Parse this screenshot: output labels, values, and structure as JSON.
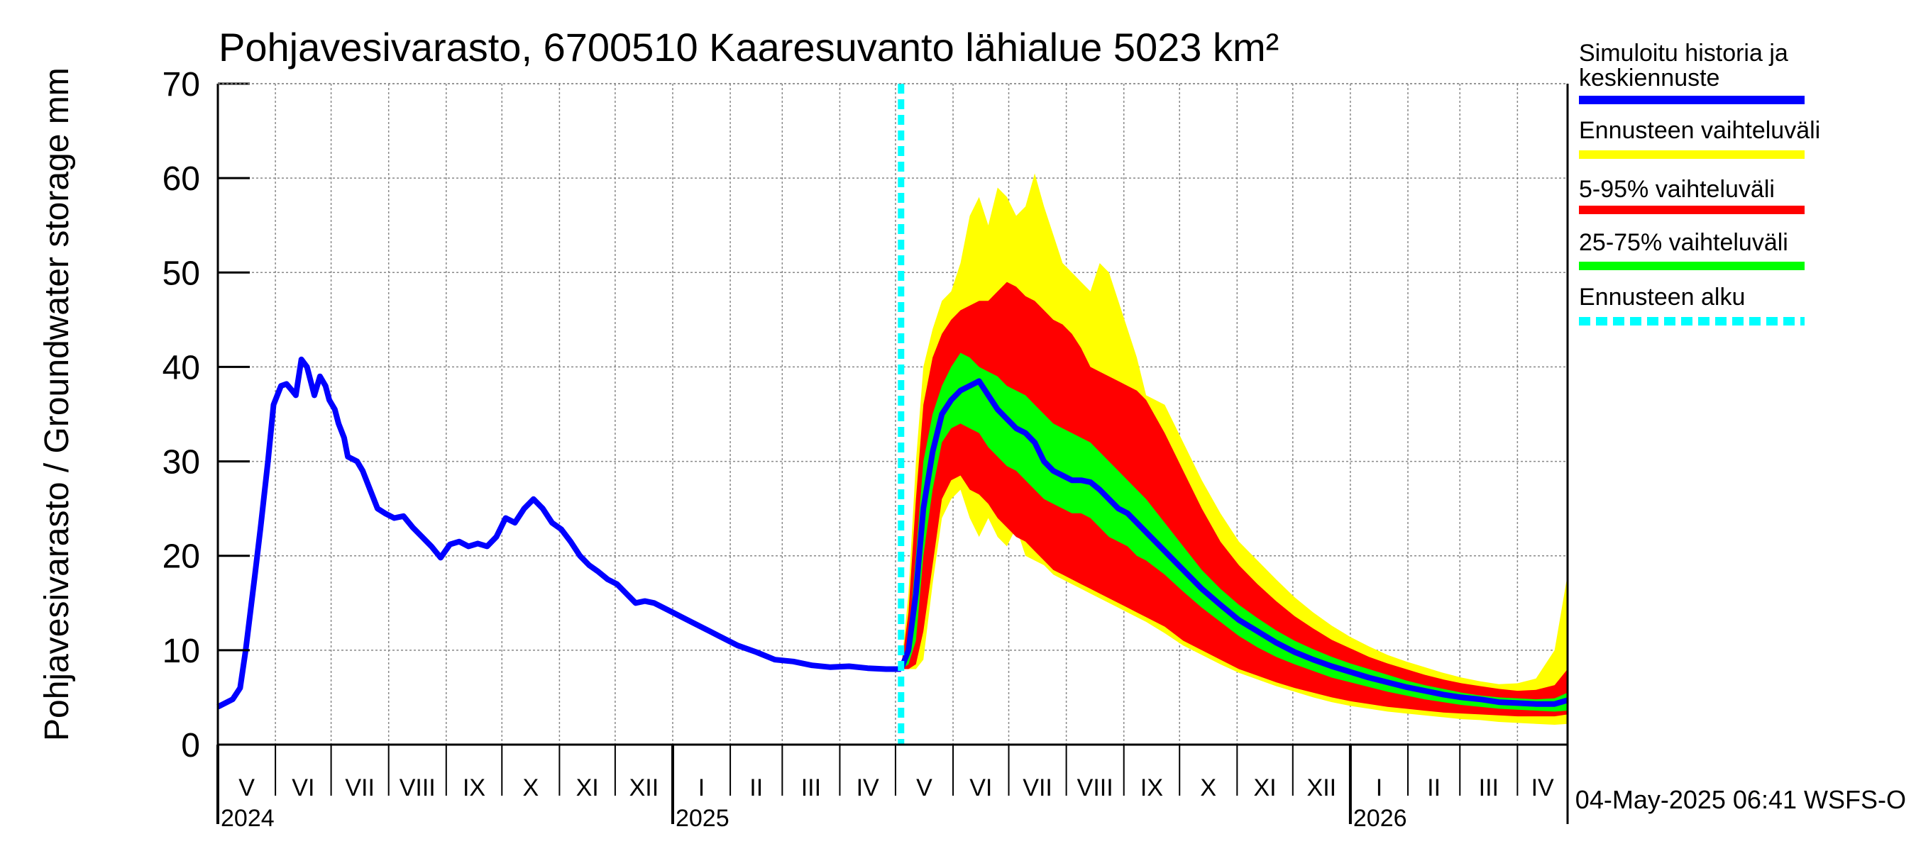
{
  "chart_data": {
    "type": "area",
    "title": "Pohjavesivarasto, 6700510 Kaaresuvanto lähialue 5023 km²",
    "ylabel": "Pohjavesivarasto / Groundwater storage   mm",
    "ylim": [
      0,
      70
    ],
    "yticks": [
      0,
      10,
      20,
      30,
      40,
      50,
      60,
      70
    ],
    "xlim_days": [
      0,
      727
    ],
    "month_labels": [
      {
        "label": "V",
        "day": 0
      },
      {
        "label": "VI",
        "day": 31
      },
      {
        "label": "VII",
        "day": 61
      },
      {
        "label": "VIII",
        "day": 92
      },
      {
        "label": "IX",
        "day": 123
      },
      {
        "label": "X",
        "day": 153
      },
      {
        "label": "XI",
        "day": 184
      },
      {
        "label": "XII",
        "day": 214
      },
      {
        "label": "I",
        "day": 245
      },
      {
        "label": "II",
        "day": 276
      },
      {
        "label": "III",
        "day": 304
      },
      {
        "label": "IV",
        "day": 335
      },
      {
        "label": "V",
        "day": 365
      },
      {
        "label": "VI",
        "day": 396
      },
      {
        "label": "VII",
        "day": 426
      },
      {
        "label": "VIII",
        "day": 457
      },
      {
        "label": "IX",
        "day": 488
      },
      {
        "label": "X",
        "day": 518
      },
      {
        "label": "XI",
        "day": 549
      },
      {
        "label": "XII",
        "day": 579
      },
      {
        "label": "I",
        "day": 610
      },
      {
        "label": "II",
        "day": 641
      },
      {
        "label": "III",
        "day": 669
      },
      {
        "label": "IV",
        "day": 700
      }
    ],
    "year_labels": [
      {
        "label": "2024",
        "day": 0
      },
      {
        "label": "2025",
        "day": 245
      },
      {
        "label": "2026",
        "day": 610
      }
    ],
    "forecast_start_day": 368,
    "history": {
      "name": "Simuloitu historia ja keskiennuste",
      "x": [
        0,
        8,
        12,
        15,
        20,
        23,
        27,
        30,
        34,
        37,
        40,
        42,
        45,
        48,
        50,
        52,
        55,
        58,
        60,
        63,
        65,
        68,
        70,
        75,
        78,
        82,
        86,
        90,
        95,
        100,
        105,
        110,
        115,
        120,
        125,
        130,
        135,
        140,
        145,
        150,
        155,
        160,
        165,
        170,
        175,
        180,
        185,
        190,
        195,
        200,
        205,
        210,
        215,
        220,
        225,
        230,
        235,
        240,
        245,
        250,
        255,
        260,
        265,
        270,
        280,
        290,
        300,
        310,
        320,
        330,
        340,
        350,
        360,
        368
      ],
      "y": [
        4.0,
        4.8,
        6.0,
        10.0,
        18.0,
        23.0,
        30.0,
        36.0,
        38.0,
        38.2,
        37.5,
        37.0,
        40.8,
        40.0,
        38.5,
        37.0,
        39.0,
        38.0,
        36.5,
        35.5,
        34.0,
        32.5,
        30.5,
        30.0,
        29.0,
        27.0,
        25.0,
        24.5,
        24.0,
        24.2,
        23.0,
        22.0,
        21.0,
        19.8,
        21.2,
        21.5,
        21.0,
        21.3,
        21.0,
        22.0,
        24.0,
        23.5,
        25.0,
        26.0,
        25.0,
        23.5,
        22.8,
        21.5,
        20.0,
        19.0,
        18.3,
        17.5,
        17.0,
        16.0,
        15.0,
        15.2,
        15.0,
        14.5,
        14.0,
        13.5,
        13.0,
        12.5,
        12.0,
        11.5,
        10.5,
        9.8,
        9.0,
        8.8,
        8.4,
        8.2,
        8.3,
        8.1,
        8.0,
        8.0
      ]
    },
    "forecast": {
      "x": [
        368,
        372,
        376,
        380,
        385,
        390,
        395,
        400,
        405,
        410,
        415,
        420,
        425,
        430,
        435,
        440,
        445,
        450,
        455,
        460,
        465,
        470,
        475,
        480,
        485,
        490,
        495,
        500,
        510,
        520,
        530,
        540,
        550,
        560,
        570,
        580,
        590,
        600,
        610,
        620,
        630,
        640,
        650,
        660,
        670,
        680,
        690,
        700,
        710,
        720,
        727
      ],
      "median": [
        8.0,
        10.0,
        16.0,
        25.0,
        31.0,
        35.0,
        36.5,
        37.5,
        38.0,
        38.5,
        37.0,
        35.5,
        34.5,
        33.5,
        33.0,
        32.0,
        30.0,
        29.0,
        28.5,
        28.0,
        28.0,
        27.8,
        27.0,
        26.0,
        25.0,
        24.5,
        23.5,
        22.5,
        20.5,
        18.5,
        16.5,
        14.8,
        13.2,
        12.0,
        10.8,
        9.8,
        9.0,
        8.3,
        7.7,
        7.1,
        6.6,
        6.1,
        5.7,
        5.3,
        5.0,
        4.8,
        4.5,
        4.4,
        4.3,
        4.3,
        4.7
      ],
      "p25": [
        8.0,
        8.5,
        11.0,
        20.0,
        27.0,
        32.0,
        33.5,
        34.0,
        33.5,
        33.0,
        31.5,
        30.5,
        29.5,
        29.0,
        28.0,
        27.0,
        26.0,
        25.5,
        25.0,
        24.5,
        24.5,
        24.0,
        23.0,
        22.0,
        21.5,
        21.0,
        20.0,
        19.5,
        18.0,
        16.2,
        14.5,
        13.0,
        11.5,
        10.3,
        9.3,
        8.5,
        7.8,
        7.1,
        6.6,
        6.1,
        5.6,
        5.2,
        4.8,
        4.5,
        4.2,
        4.0,
        3.8,
        3.7,
        3.6,
        3.5,
        3.6
      ],
      "p75": [
        8.0,
        11.0,
        20.0,
        30.0,
        35.0,
        38.0,
        40.0,
        41.5,
        41.0,
        40.0,
        39.5,
        39.0,
        38.0,
        37.5,
        37.0,
        36.0,
        35.0,
        34.0,
        33.5,
        33.0,
        32.5,
        32.0,
        31.0,
        30.0,
        29.0,
        28.0,
        27.0,
        26.0,
        23.5,
        21.0,
        18.5,
        16.5,
        14.8,
        13.4,
        12.1,
        11.0,
        10.1,
        9.3,
        8.6,
        8.0,
        7.4,
        6.8,
        6.3,
        5.9,
        5.5,
        5.2,
        5.0,
        4.9,
        4.8,
        4.9,
        5.5
      ],
      "p5": [
        8.0,
        8.0,
        8.5,
        12.0,
        19.0,
        26.0,
        28.0,
        28.5,
        27.0,
        26.5,
        25.5,
        24.0,
        23.0,
        22.0,
        21.5,
        20.5,
        19.5,
        18.5,
        18.0,
        17.5,
        17.0,
        16.5,
        16.0,
        15.5,
        15.0,
        14.5,
        14.0,
        13.5,
        12.5,
        11.0,
        10.0,
        9.0,
        8.0,
        7.3,
        6.6,
        6.0,
        5.5,
        5.0,
        4.6,
        4.3,
        4.0,
        3.8,
        3.6,
        3.4,
        3.3,
        3.2,
        3.1,
        3.0,
        3.0,
        3.0,
        3.2
      ],
      "p95": [
        8.0,
        14.0,
        26.0,
        36.0,
        41.0,
        43.5,
        45.0,
        46.0,
        46.5,
        47.0,
        47.0,
        48.0,
        49.0,
        48.5,
        47.5,
        47.0,
        46.0,
        45.0,
        44.5,
        43.5,
        42.0,
        40.0,
        39.5,
        39.0,
        38.5,
        38.0,
        37.5,
        36.5,
        33.0,
        29.0,
        25.0,
        21.5,
        19.0,
        17.0,
        15.2,
        13.6,
        12.3,
        11.1,
        10.2,
        9.3,
        8.6,
        8.0,
        7.4,
        6.9,
        6.5,
        6.2,
        5.9,
        5.7,
        5.8,
        6.3,
        8.0
      ],
      "min": [
        8.0,
        8.0,
        8.0,
        9.0,
        17.0,
        24.0,
        26.0,
        27.0,
        24.0,
        22.0,
        24.0,
        22.0,
        21.0,
        23.0,
        20.0,
        19.5,
        19.0,
        18.0,
        17.5,
        17.0,
        16.5,
        16.0,
        15.5,
        15.0,
        14.5,
        14.0,
        13.5,
        13.0,
        11.8,
        10.5,
        9.5,
        8.5,
        7.6,
        6.9,
        6.2,
        5.6,
        5.0,
        4.5,
        4.1,
        3.8,
        3.5,
        3.3,
        3.1,
        2.9,
        2.7,
        2.6,
        2.4,
        2.3,
        2.2,
        2.1,
        2.2
      ],
      "max": [
        8.0,
        16.0,
        30.0,
        40.0,
        44.0,
        47.0,
        48.0,
        51.0,
        56.0,
        58.0,
        55.0,
        59.0,
        58.0,
        56.0,
        57.0,
        60.5,
        57.0,
        54.0,
        51.0,
        50.0,
        49.0,
        48.0,
        51.0,
        50.0,
        47.0,
        44.0,
        41.0,
        37.0,
        36.0,
        32.0,
        28.0,
        24.5,
        21.5,
        19.5,
        17.5,
        15.6,
        14.0,
        12.6,
        11.4,
        10.4,
        9.5,
        8.8,
        8.2,
        7.6,
        7.1,
        6.7,
        6.4,
        6.5,
        7.0,
        10.0,
        18.0
      ]
    },
    "legend": [
      {
        "label": "Simuloitu historia ja",
        "label2": "keskiennuste",
        "color": "#0000ff",
        "style": "solid"
      },
      {
        "label": "Ennusteen vaihteluväli",
        "color": "#ffff00",
        "style": "solid"
      },
      {
        "label": "5-95% vaihteluväli",
        "color": "#ff0000",
        "style": "solid"
      },
      {
        "label": "25-75% vaihteluväli",
        "color": "#00ff00",
        "style": "solid"
      },
      {
        "label": "Ennusteen alku",
        "color": "#00ffff",
        "style": "dashed"
      }
    ],
    "colors": {
      "history": "#0000ff",
      "range": "#ffff00",
      "p5_95": "#ff0000",
      "p25_75": "#00ff00",
      "forecast_start": "#00ffff"
    },
    "footer": "04-May-2025 06:41 WSFS-O"
  }
}
